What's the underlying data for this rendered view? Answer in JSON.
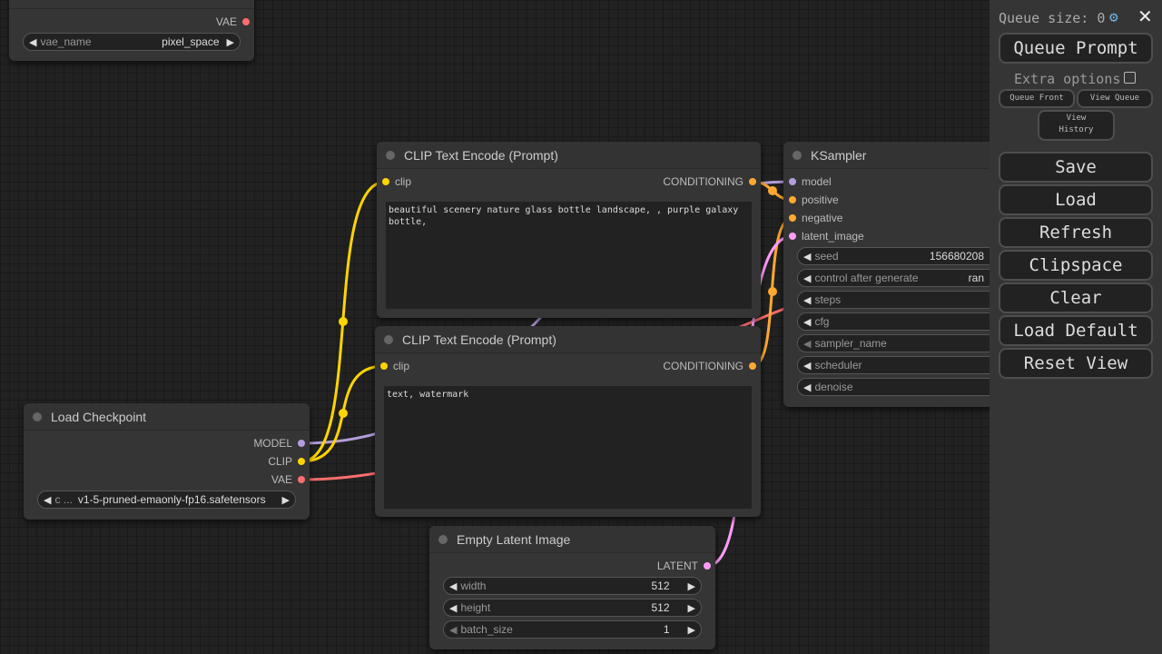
{
  "colors": {
    "model": "#b39ddb",
    "clip": "#ffd500",
    "vae": "#ff6e6e",
    "conditioning": "#ffa931",
    "latent": "#ff9cf9"
  },
  "vae_node": {
    "output": "VAE",
    "widget": {
      "label": "vae_name",
      "value": "pixel_space"
    }
  },
  "clip_pos": {
    "title": "CLIP Text Encode (Prompt)",
    "input": "clip",
    "output": "CONDITIONING",
    "text": "beautiful scenery nature glass bottle landscape, , purple galaxy bottle,"
  },
  "clip_neg": {
    "title": "CLIP Text Encode (Prompt)",
    "input": "clip",
    "output": "CONDITIONING",
    "text": "text, watermark"
  },
  "checkpoint": {
    "title": "Load Checkpoint",
    "outputs": [
      "MODEL",
      "CLIP",
      "VAE"
    ],
    "widget": {
      "label": "c ...",
      "value": "v1-5-pruned-emaonly-fp16.safetensors"
    }
  },
  "latent": {
    "title": "Empty Latent Image",
    "output": "LATENT",
    "widgets": [
      {
        "label": "width",
        "value": "512"
      },
      {
        "label": "height",
        "value": "512"
      },
      {
        "label": "batch_size",
        "value": "1"
      }
    ]
  },
  "ksampler": {
    "title": "KSampler",
    "inputs": [
      "model",
      "positive",
      "negative",
      "latent_image"
    ],
    "widgets": [
      {
        "label": "seed",
        "value": "156680208"
      },
      {
        "label": "control after generate",
        "value": "ran"
      },
      {
        "label": "steps",
        "value": ""
      },
      {
        "label": "cfg",
        "value": ""
      },
      {
        "label": "sampler_name",
        "value": ""
      },
      {
        "label": "scheduler",
        "value": ""
      },
      {
        "label": "denoise",
        "value": ""
      }
    ]
  },
  "panel": {
    "queue_size": "Queue size: 0",
    "settings_icon": "gear-icon",
    "close_icon": "close-icon",
    "queue_prompt": "Queue Prompt",
    "extra_options": "Extra options",
    "queue_front": "Queue Front",
    "view_queue": "View Queue",
    "view_history": "View History",
    "buttons": [
      "Save",
      "Load",
      "Refresh",
      "Clipspace",
      "Clear",
      "Load Default",
      "Reset View"
    ]
  }
}
